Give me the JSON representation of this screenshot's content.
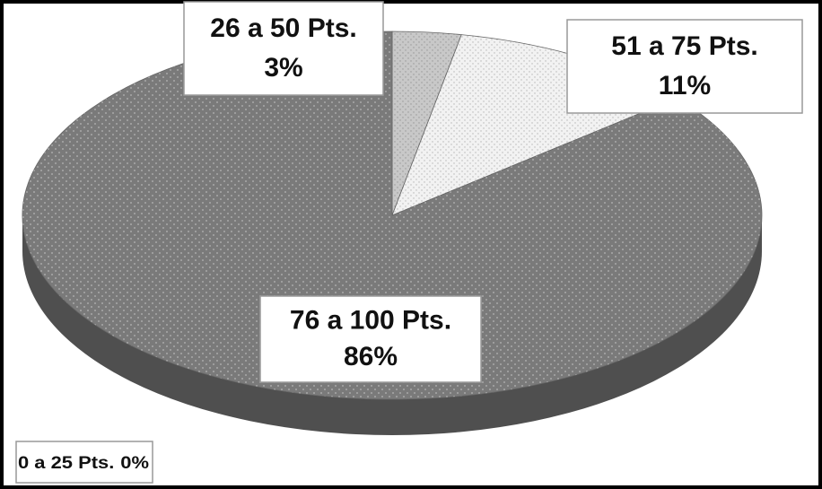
{
  "chart_data": {
    "type": "pie",
    "categories": [
      "0 a 25 Pts.",
      "26 a 50 Pts.",
      "51 a 75 Pts.",
      "76 a 100 Pts."
    ],
    "values": [
      0,
      3,
      11,
      86
    ],
    "value_labels": [
      "0%",
      "3%",
      "11%",
      "86%"
    ],
    "colors": [
      "#bbbbbb",
      "#c8c8c8",
      "#f2f2f2",
      "#7a7a7a"
    ]
  }
}
